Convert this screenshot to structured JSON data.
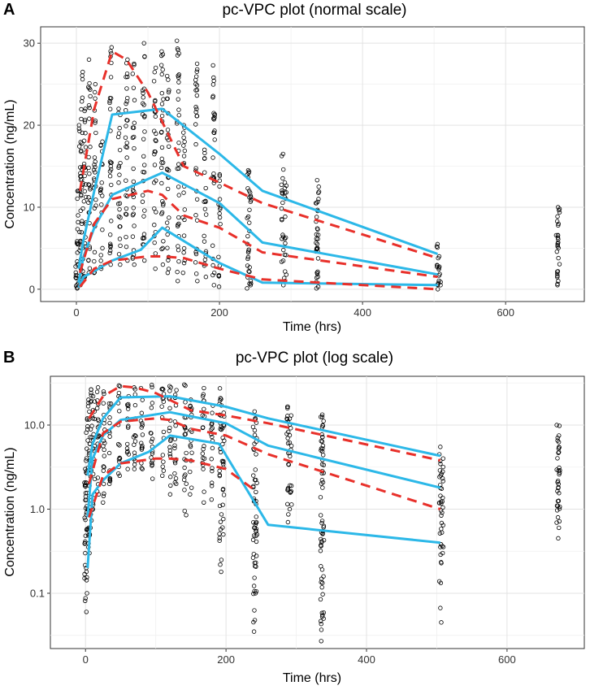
{
  "chart_data": [
    {
      "panel": "A",
      "type": "scatter",
      "title": "pc-VPC plot (normal scale)",
      "xlabel": "Time (hrs)",
      "ylabel": "Concentration (ng/mL)",
      "xlim": [
        -50,
        710
      ],
      "ylim": [
        -1.5,
        32
      ],
      "x_ticks": [
        0,
        200,
        400,
        600
      ],
      "y_ticks": [
        0,
        10,
        20,
        30
      ],
      "y_scale": "linear",
      "grid": true,
      "colors": {
        "prediction": "#E8302A",
        "observed": "#2CB8E8",
        "points": "#000000"
      },
      "series": [
        {
          "name": "observed-upper",
          "style": "solid",
          "x": [
            3,
            10,
            25,
            50,
            120,
            200,
            260,
            505
          ],
          "y": [
            2.5,
            6,
            12,
            21.3,
            22,
            16.5,
            12,
            4.3
          ]
        },
        {
          "name": "observed-median",
          "style": "solid",
          "x": [
            3,
            10,
            25,
            50,
            120,
            200,
            260,
            505
          ],
          "y": [
            0.8,
            4,
            7.5,
            11.5,
            14.2,
            10.5,
            5.7,
            1.8
          ]
        },
        {
          "name": "observed-lower",
          "style": "solid",
          "x": [
            3,
            10,
            25,
            50,
            90,
            120,
            200,
            260,
            505
          ],
          "y": [
            0.2,
            1.5,
            2.2,
            3.5,
            4.8,
            7.5,
            3.2,
            0.8,
            0.5
          ]
        },
        {
          "name": "predicted-upper",
          "style": "dashed",
          "x": [
            5,
            25,
            50,
            70,
            100,
            150,
            200,
            260,
            505
          ],
          "y": [
            12,
            22,
            29,
            28,
            24,
            15,
            13,
            10.5,
            3.8
          ]
        },
        {
          "name": "predicted-median",
          "style": "dashed",
          "x": [
            5,
            25,
            50,
            100,
            120,
            150,
            200,
            260,
            505
          ],
          "y": [
            2,
            8,
            11,
            12,
            11.5,
            9,
            7.5,
            4.5,
            1.5
          ]
        },
        {
          "name": "predicted-lower",
          "style": "dashed",
          "x": [
            5,
            25,
            50,
            100,
            120,
            150,
            200,
            260,
            505
          ],
          "y": [
            0.3,
            2.5,
            3.5,
            4,
            4,
            3.8,
            2.5,
            1.2,
            0
          ]
        }
      ],
      "point_clusters": [
        {
          "x": 0,
          "ymin": 0.1,
          "ymax": 3
        },
        {
          "x": 2,
          "ymin": 0.2,
          "ymax": 12
        },
        {
          "x": 5,
          "ymin": 0.5,
          "ymax": 20
        },
        {
          "x": 8,
          "ymin": 1,
          "ymax": 26.5
        },
        {
          "x": 12,
          "ymin": 1.5,
          "ymax": 22
        },
        {
          "x": 18,
          "ymin": 2,
          "ymax": 28
        },
        {
          "x": 26,
          "ymin": 2,
          "ymax": 25
        },
        {
          "x": 35,
          "ymin": 2.5,
          "ymax": 18
        },
        {
          "x": 48,
          "ymin": 3,
          "ymax": 29.5
        },
        {
          "x": 60,
          "ymin": 3,
          "ymax": 22
        },
        {
          "x": 70,
          "ymin": 3.5,
          "ymax": 28
        },
        {
          "x": 80,
          "ymin": 3,
          "ymax": 27.5
        },
        {
          "x": 94,
          "ymin": 3.5,
          "ymax": 30
        },
        {
          "x": 110,
          "ymin": 2.5,
          "ymax": 27
        },
        {
          "x": 120,
          "ymin": 3,
          "ymax": 29
        },
        {
          "x": 128,
          "ymin": 2,
          "ymax": 26
        },
        {
          "x": 142,
          "ymin": 1,
          "ymax": 30.3
        },
        {
          "x": 150,
          "ymin": 2,
          "ymax": 20
        },
        {
          "x": 168,
          "ymin": 1,
          "ymax": 27.5
        },
        {
          "x": 180,
          "ymin": 1.5,
          "ymax": 17
        },
        {
          "x": 192,
          "ymin": 0.5,
          "ymax": 27.3
        },
        {
          "x": 200,
          "ymin": 0.3,
          "ymax": 14
        },
        {
          "x": 240,
          "ymin": 0.1,
          "ymax": 14.5
        },
        {
          "x": 243,
          "ymin": 0.5,
          "ymax": 12
        },
        {
          "x": 288,
          "ymin": 0.5,
          "ymax": 16.5
        },
        {
          "x": 292,
          "ymin": 1,
          "ymax": 13
        },
        {
          "x": 336,
          "ymin": 0.1,
          "ymax": 13.3
        },
        {
          "x": 338,
          "ymin": 0.3,
          "ymax": 12.5
        },
        {
          "x": 505,
          "ymin": 0,
          "ymax": 5.5
        },
        {
          "x": 508,
          "ymin": 0.5,
          "ymax": 4
        },
        {
          "x": 672,
          "ymin": 0.5,
          "ymax": 10
        },
        {
          "x": 674,
          "ymin": 1,
          "ymax": 9.8
        }
      ]
    },
    {
      "panel": "B",
      "type": "scatter",
      "title": "pc-VPC plot (log scale)",
      "xlabel": "Time (hrs)",
      "ylabel": "Concentration (ng/mL)",
      "xlim": [
        -50,
        710
      ],
      "ylim": [
        0.022,
        38
      ],
      "x_ticks": [
        0,
        200,
        400,
        600
      ],
      "y_ticks": [
        0.1,
        1.0,
        10.0
      ],
      "y_tick_labels": [
        "0.1",
        "1.0",
        "10.0"
      ],
      "y_scale": "log10",
      "grid": true,
      "colors": {
        "prediction": "#E8302A",
        "observed": "#2CB8E8",
        "points": "#000000"
      },
      "series": [
        {
          "name": "observed-upper",
          "style": "solid",
          "x": [
            3,
            10,
            25,
            50,
            120,
            200,
            260,
            505
          ],
          "y": [
            2.5,
            6,
            12,
            21.3,
            22,
            16.5,
            12,
            4.3
          ]
        },
        {
          "name": "observed-median",
          "style": "solid",
          "x": [
            3,
            10,
            25,
            50,
            120,
            200,
            260,
            505
          ],
          "y": [
            0.8,
            4,
            7.5,
            11.5,
            14.2,
            10.5,
            5.7,
            1.8
          ]
        },
        {
          "name": "observed-lower",
          "style": "solid",
          "x": [
            3,
            10,
            25,
            50,
            90,
            120,
            190,
            260,
            505
          ],
          "y": [
            0.2,
            1.5,
            2.2,
            3.5,
            4.8,
            7.5,
            6,
            0.65,
            0.4
          ]
        },
        {
          "name": "predicted-upper",
          "style": "dashed",
          "x": [
            5,
            25,
            50,
            70,
            100,
            150,
            200,
            260,
            505
          ],
          "y": [
            12,
            22,
            29,
            28,
            24,
            15,
            13,
            10.5,
            3.8
          ]
        },
        {
          "name": "predicted-median",
          "style": "dashed",
          "x": [
            5,
            25,
            50,
            100,
            120,
            150,
            200,
            260,
            505
          ],
          "y": [
            2,
            8,
            11,
            12,
            11.5,
            9,
            7.5,
            4.5,
            1
          ]
        },
        {
          "name": "predicted-lower",
          "style": "dashed",
          "x": [
            5,
            25,
            50,
            100,
            120,
            150,
            200,
            240
          ],
          "y": [
            0.8,
            2.5,
            3.5,
            4,
            4,
            3.8,
            3,
            1.7
          ]
        }
      ],
      "point_clusters": [
        {
          "x": 0,
          "ymin": 0.06,
          "ymax": 3
        },
        {
          "x": 2,
          "ymin": 0.1,
          "ymax": 12
        },
        {
          "x": 5,
          "ymin": 0.3,
          "ymax": 20
        },
        {
          "x": 8,
          "ymin": 0.6,
          "ymax": 26.5
        },
        {
          "x": 12,
          "ymin": 1,
          "ymax": 22
        },
        {
          "x": 18,
          "ymin": 1.5,
          "ymax": 28
        },
        {
          "x": 26,
          "ymin": 1.2,
          "ymax": 25
        },
        {
          "x": 35,
          "ymin": 2,
          "ymax": 18
        },
        {
          "x": 48,
          "ymin": 2.5,
          "ymax": 29.5
        },
        {
          "x": 60,
          "ymin": 3,
          "ymax": 22
        },
        {
          "x": 70,
          "ymin": 3,
          "ymax": 28
        },
        {
          "x": 80,
          "ymin": 3,
          "ymax": 27.5
        },
        {
          "x": 94,
          "ymin": 2.3,
          "ymax": 30
        },
        {
          "x": 110,
          "ymin": 2.5,
          "ymax": 27
        },
        {
          "x": 120,
          "ymin": 1.5,
          "ymax": 29
        },
        {
          "x": 128,
          "ymin": 2,
          "ymax": 26
        },
        {
          "x": 142,
          "ymin": 0.85,
          "ymax": 30.3
        },
        {
          "x": 150,
          "ymin": 1.5,
          "ymax": 20
        },
        {
          "x": 168,
          "ymin": 1.2,
          "ymax": 27.5
        },
        {
          "x": 180,
          "ymin": 1.3,
          "ymax": 17
        },
        {
          "x": 192,
          "ymin": 0.18,
          "ymax": 27.3
        },
        {
          "x": 196,
          "ymin": 0.5,
          "ymax": 14
        },
        {
          "x": 240,
          "ymin": 0.035,
          "ymax": 14.5
        },
        {
          "x": 243,
          "ymin": 0.1,
          "ymax": 12
        },
        {
          "x": 288,
          "ymin": 0.7,
          "ymax": 16.5
        },
        {
          "x": 292,
          "ymin": 1,
          "ymax": 13
        },
        {
          "x": 336,
          "ymin": 0.027,
          "ymax": 13.3
        },
        {
          "x": 338,
          "ymin": 0.05,
          "ymax": 12.5
        },
        {
          "x": 505,
          "ymin": 0.045,
          "ymax": 5.5
        },
        {
          "x": 508,
          "ymin": 0.3,
          "ymax": 4
        },
        {
          "x": 672,
          "ymin": 0.45,
          "ymax": 10
        },
        {
          "x": 674,
          "ymin": 0.6,
          "ymax": 9.8
        }
      ]
    }
  ]
}
